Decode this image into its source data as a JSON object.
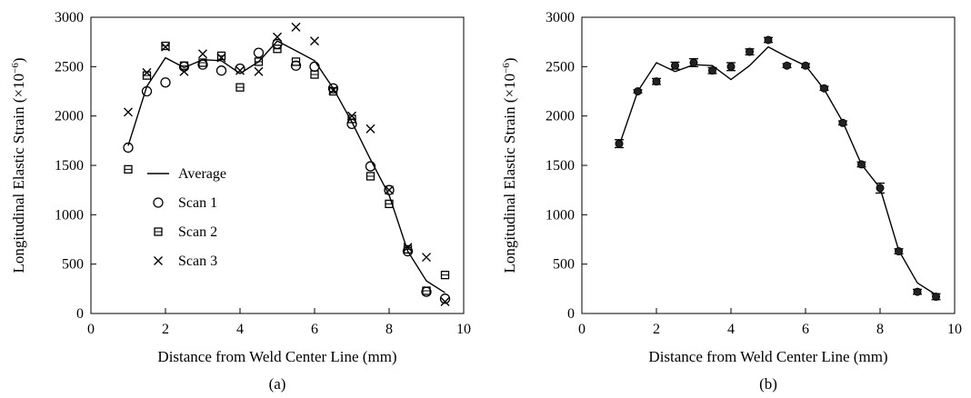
{
  "chart_data": [
    {
      "panel_label": "(a)",
      "type": "line+scatter",
      "xlabel": "Distance from Weld Center Line (mm)",
      "ylabel": "Longitudinal Elastic Strain (×10",
      "ylabel_sup": "−6",
      "ylabel_tail": ")",
      "xlim": [
        0,
        10
      ],
      "ylim": [
        0,
        3000
      ],
      "xticks": [
        "0",
        "2",
        "4",
        "6",
        "8",
        "10"
      ],
      "yticks": [
        "0",
        "500",
        "1000",
        "1500",
        "2000",
        "2500",
        "3000"
      ],
      "legend": {
        "position": "center-left",
        "entries": [
          {
            "label": "Average",
            "marker": "line"
          },
          {
            "label": "Scan 1",
            "marker": "circle"
          },
          {
            "label": "Scan 2",
            "marker": "square"
          },
          {
            "label": "Scan 3",
            "marker": "x"
          }
        ]
      },
      "series": [
        {
          "name": "Average",
          "style": "line",
          "x": [
            1,
            1.5,
            2,
            2.5,
            3,
            3.5,
            4,
            4.5,
            5,
            5.5,
            6,
            6.5,
            7,
            7.5,
            8,
            8.5,
            9,
            9.5
          ],
          "y": [
            1700,
            2300,
            2590,
            2490,
            2570,
            2560,
            2430,
            2550,
            2760,
            2660,
            2560,
            2280,
            1940,
            1560,
            1200,
            630,
            330,
            210
          ]
        },
        {
          "name": "Scan 1",
          "style": "circle",
          "x": [
            1,
            1.5,
            2,
            2.5,
            3,
            3.5,
            4,
            4.5,
            5,
            5.5,
            6,
            6.5,
            7,
            7.5,
            8,
            8.5,
            9,
            9.5
          ],
          "y": [
            1680,
            2250,
            2340,
            2500,
            2520,
            2460,
            2480,
            2640,
            2730,
            2510,
            2500,
            2280,
            1920,
            1490,
            1250,
            630,
            220,
            150
          ]
        },
        {
          "name": "Scan 2",
          "style": "square",
          "x": [
            1,
            1.5,
            2,
            2.5,
            3,
            3.5,
            4,
            4.5,
            5,
            5.5,
            6,
            6.5,
            7,
            7.5,
            8,
            8.5,
            9,
            9.5
          ],
          "y": [
            1460,
            2410,
            2710,
            2510,
            2540,
            2610,
            2290,
            2550,
            2680,
            2550,
            2420,
            2250,
            1970,
            1390,
            1110,
            650,
            230,
            390
          ]
        },
        {
          "name": "Scan 3",
          "style": "x",
          "x": [
            1,
            1.5,
            2,
            2.5,
            3,
            3.5,
            4,
            4.5,
            5,
            5.5,
            6,
            6.5,
            7,
            7.5,
            8,
            8.5,
            9,
            9.5
          ],
          "y": [
            2040,
            2440,
            2700,
            2450,
            2630,
            2590,
            2460,
            2450,
            2800,
            2900,
            2760,
            2260,
            2000,
            1870,
            1250,
            670,
            570,
            120
          ]
        }
      ]
    },
    {
      "panel_label": "(b)",
      "type": "line+errorbar",
      "xlabel": "Distance from Weld Center Line (mm)",
      "ylabel": "Longitudinal Elastic Strain (×10",
      "ylabel_sup": "−6",
      "ylabel_tail": ")",
      "xlim": [
        0,
        10
      ],
      "ylim": [
        0,
        3000
      ],
      "xticks": [
        "0",
        "2",
        "4",
        "6",
        "8",
        "10"
      ],
      "yticks": [
        "0",
        "500",
        "1000",
        "1500",
        "2000",
        "2500",
        "3000"
      ],
      "series": [
        {
          "style": "line",
          "x": [
            1,
            1.5,
            2,
            2.5,
            3,
            3.5,
            4,
            4.5,
            5,
            5.5,
            6,
            6.5,
            7,
            7.5,
            8,
            8.5,
            9,
            9.5
          ],
          "y": [
            1700,
            2250,
            2540,
            2450,
            2520,
            2510,
            2370,
            2510,
            2700,
            2600,
            2510,
            2270,
            1940,
            1510,
            1270,
            640,
            310,
            190
          ]
        },
        {
          "style": "dot",
          "x": [
            1,
            1.5,
            2,
            2.5,
            3,
            3.5,
            4,
            4.5,
            5,
            5.5,
            6,
            6.5,
            7,
            7.5,
            8,
            8.5,
            9,
            9.5
          ],
          "y": [
            1720,
            2250,
            2350,
            2510,
            2540,
            2460,
            2500,
            2650,
            2770,
            2510,
            2510,
            2280,
            1930,
            1510,
            1270,
            630,
            220,
            170
          ],
          "err": [
            40,
            15,
            30,
            35,
            40,
            30,
            40,
            30,
            25,
            20,
            20,
            20,
            20,
            25,
            50,
            25,
            25,
            30
          ]
        }
      ]
    }
  ]
}
